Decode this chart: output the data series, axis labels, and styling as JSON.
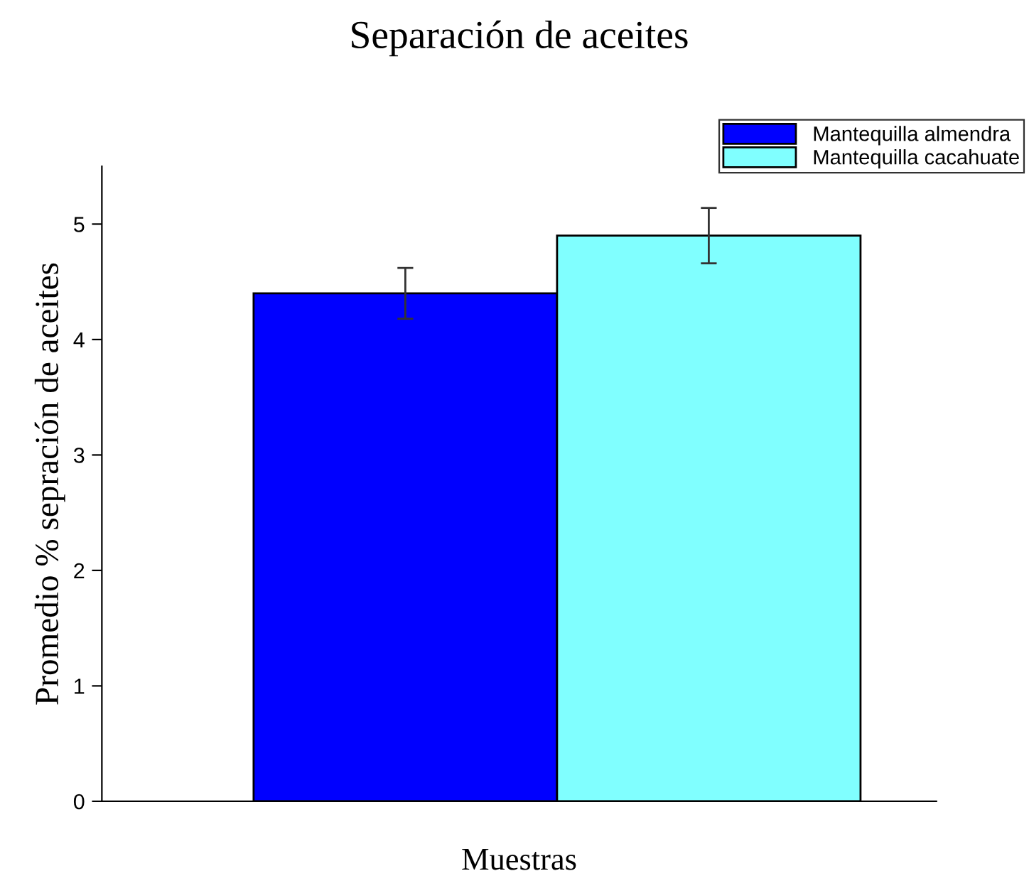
{
  "chart_data": {
    "type": "bar",
    "title": "Separación de aceites",
    "xlabel": "Muestras",
    "ylabel": "Promedio % sepración de aceites",
    "categories": [
      null
    ],
    "series": [
      {
        "name": "Mantequilla almendra",
        "color": "#0000ff",
        "values": [
          4.4
        ],
        "errors": [
          0.22
        ]
      },
      {
        "name": "Mantequilla cacahuate",
        "color": "#80ffff",
        "values": [
          4.9
        ],
        "errors": [
          0.24
        ]
      }
    ],
    "ylim": [
      0,
      5.5
    ],
    "yticks": [
      0,
      1,
      2,
      3,
      4,
      5
    ],
    "grid": false,
    "legend": "top right"
  }
}
